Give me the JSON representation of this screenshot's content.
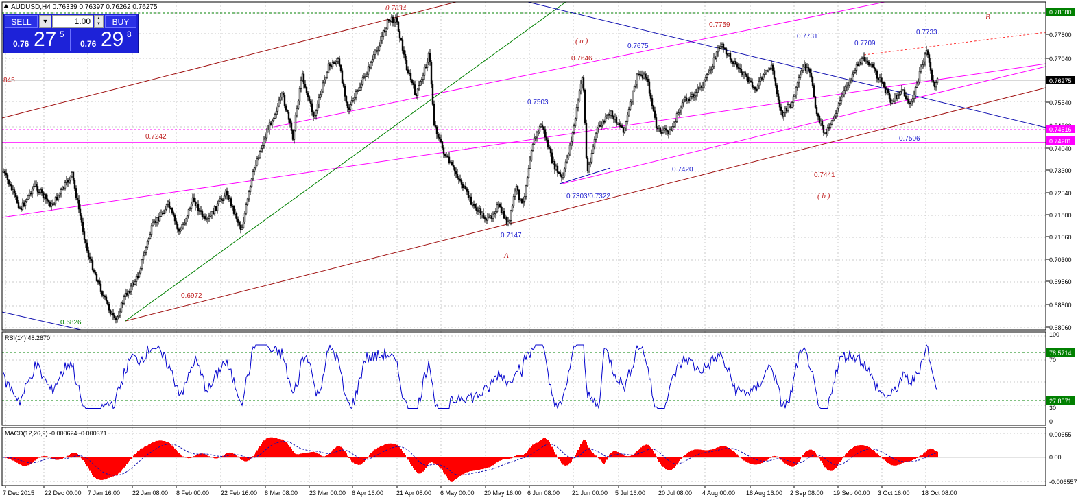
{
  "header": {
    "title": "AUDUSD,H4  0.76339 0.76397 0.76262 0.76275"
  },
  "trade_panel": {
    "sell_label": "SELL",
    "buy_label": "BUY",
    "lot": "1.00",
    "sell_price": {
      "prefix": "0.76",
      "big": "27",
      "sup": "5"
    },
    "buy_price": {
      "prefix": "0.76",
      "big": "29",
      "sup": "8"
    }
  },
  "colors": {
    "candle": "#000000",
    "magenta": "#ff00ff",
    "darkred": "#a01010",
    "blue_line": "#1010b0",
    "green_line": "#008000",
    "label_blue": "#2020d0",
    "label_red": "#c02020",
    "rsi_line": "#0000cc",
    "macd_fill": "#ff0000",
    "signal_line": "#1010b0",
    "level_green": "#008000"
  },
  "price_axis": {
    "labels": [
      "0.78580",
      "0.77800",
      "0.77040",
      "0.76275",
      "0.75540",
      "0.74800",
      "0.74616",
      "0.74201",
      "0.74040",
      "0.73300",
      "0.72540",
      "0.71800",
      "0.71060",
      "0.70300",
      "0.69560",
      "0.68800",
      "0.68060"
    ],
    "current": "0.76275",
    "tag_top": "0.78580",
    "tag_magenta1": "0.74616",
    "tag_magenta2": "0.74201"
  },
  "time_axis": {
    "labels": [
      "7 Dec 2015",
      "22 Dec 00:00",
      "7 Jan 16:00",
      "22 Jan 08:00",
      "8 Feb 00:00",
      "22 Feb 16:00",
      "8 Mar 08:00",
      "23 Mar 00:00",
      "6 Apr 16:00",
      "21 Apr 08:00",
      "6 May 00:00",
      "20 May 16:00",
      "6 Jun 08:00",
      "21 Jun 00:00",
      "5 Jul 16:00",
      "20 Jul 08:00",
      "4 Aug 00:00",
      "18 Aug 16:00",
      "2 Sep 08:00",
      "19 Sep 00:00",
      "3 Oct 16:00",
      "18 Oct 08:00"
    ]
  },
  "annotations": [
    {
      "text": "0.7834",
      "color": "red",
      "italic": true
    },
    {
      "text": "0.7759",
      "color": "red"
    },
    {
      "text": "( a )",
      "color": "red",
      "italic": true
    },
    {
      "text": "0.7646",
      "color": "red"
    },
    {
      "text": "0.7675",
      "color": "blue"
    },
    {
      "text": "0.7731",
      "color": "blue"
    },
    {
      "text": "0.7709",
      "color": "blue"
    },
    {
      "text": "0.7733",
      "color": "blue"
    },
    {
      "text": "B",
      "color": "red",
      "italic": true
    },
    {
      "text": "845",
      "color": "red"
    },
    {
      "text": "0.7503",
      "color": "blue"
    },
    {
      "text": "0.7242",
      "color": "red"
    },
    {
      "text": "0.7506",
      "color": "blue"
    },
    {
      "text": "0.7420",
      "color": "blue"
    },
    {
      "text": "0.7441",
      "color": "red"
    },
    {
      "text": "( b )",
      "color": "red",
      "italic": true
    },
    {
      "text": "0.7303/0.7322",
      "color": "blue"
    },
    {
      "text": "0.7147",
      "color": "blue"
    },
    {
      "text": "A",
      "color": "red",
      "italic": true
    },
    {
      "text": "0.6972",
      "color": "red"
    },
    {
      "text": "0.6826",
      "color": "green"
    }
  ],
  "rsi": {
    "title": "RSI(14) 48.2670",
    "axis": [
      "100",
      "70",
      "30",
      "0"
    ],
    "level_high": "78.5714",
    "level_low": "27.8571"
  },
  "macd": {
    "title": "MACD(12,26,9) -0.000624 -0.000371",
    "axis": [
      "0.00655",
      "0.00",
      "-0.006557"
    ]
  }
}
